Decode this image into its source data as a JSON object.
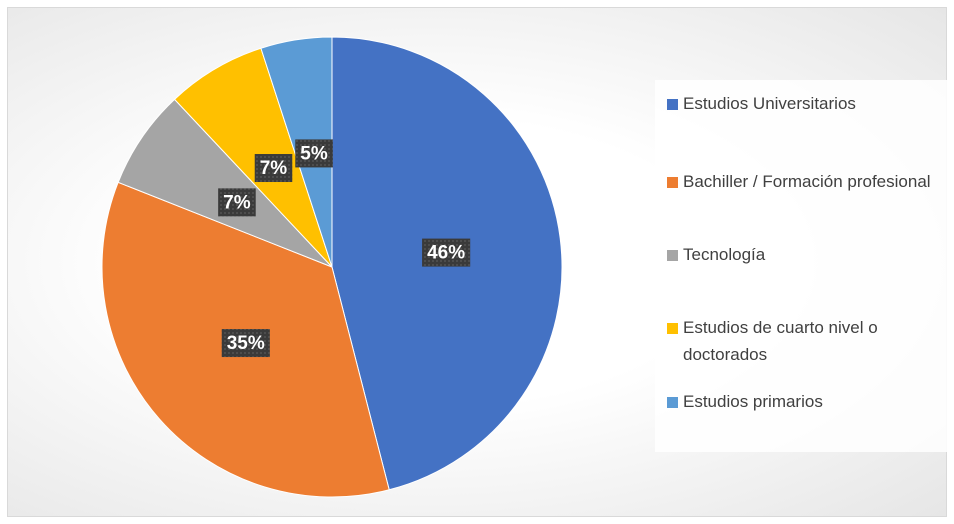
{
  "chart_data": {
    "type": "pie",
    "categories": [
      "Estudios Universitarios",
      "Bachiller / Formación profesional",
      "Tecnología",
      "Estudios de cuarto nivel o doctorados",
      "Estudios primarios"
    ],
    "values": [
      46,
      35,
      7,
      7,
      5
    ],
    "value_labels": [
      "46%",
      "35%",
      "7%",
      "7%",
      "5%"
    ],
    "colors": [
      "#4472c4",
      "#ed7d31",
      "#a5a5a5",
      "#ffc000",
      "#5b9bd5"
    ],
    "legend": "right"
  }
}
